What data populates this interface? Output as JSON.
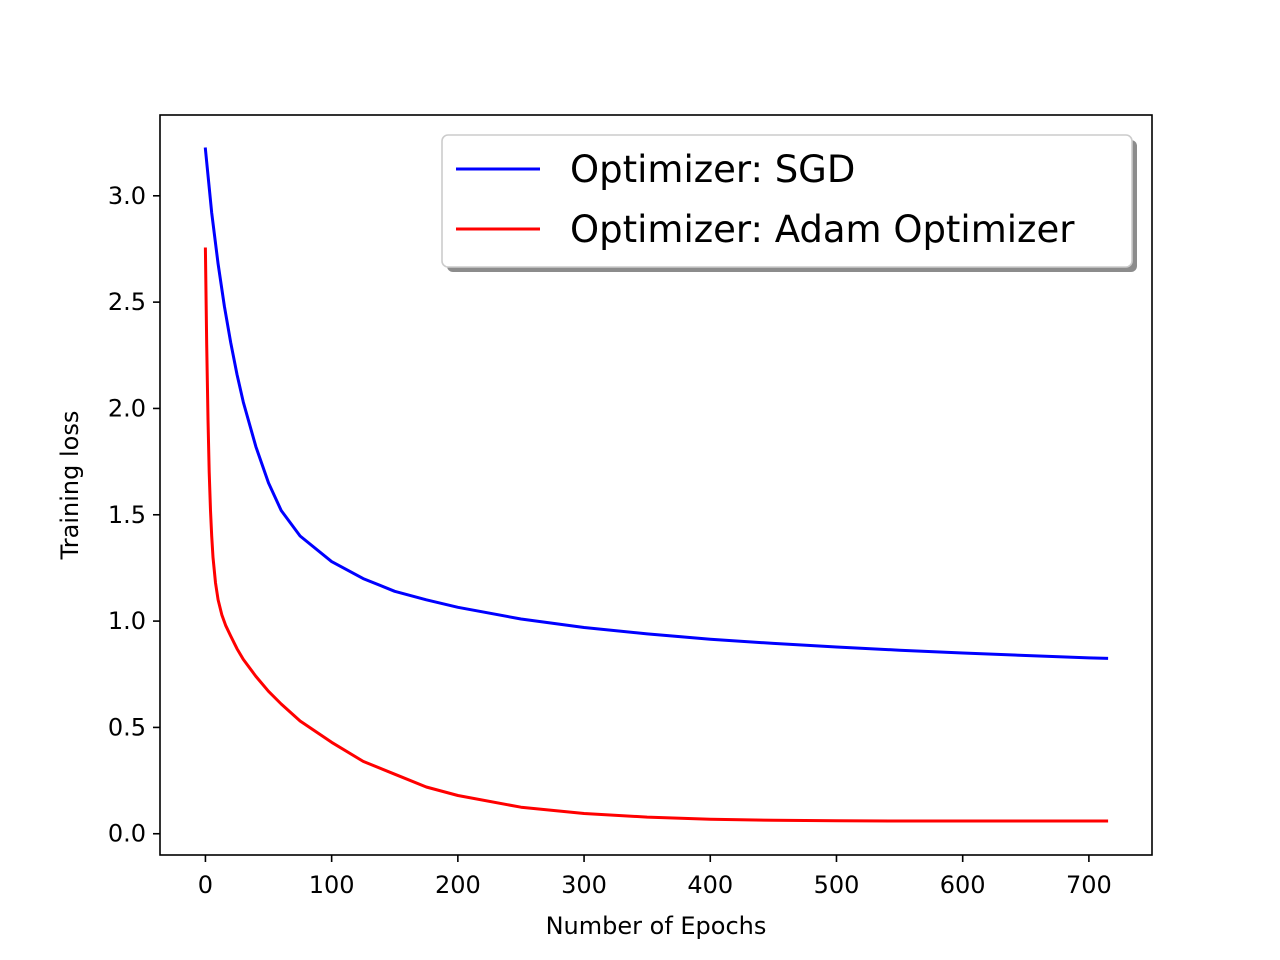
{
  "chart_data": {
    "type": "line",
    "title": "",
    "xlabel": "Number of Epochs",
    "ylabel": "Training loss",
    "xlim": [
      -36,
      750
    ],
    "ylim": [
      -0.1,
      3.38
    ],
    "grid": false,
    "legend_position": "top-right",
    "x_ticks": [
      {
        "value": 0,
        "label": "0"
      },
      {
        "value": 100,
        "label": "100"
      },
      {
        "value": 200,
        "label": "200"
      },
      {
        "value": 300,
        "label": "300"
      },
      {
        "value": 400,
        "label": "400"
      },
      {
        "value": 500,
        "label": "500"
      },
      {
        "value": 600,
        "label": "600"
      },
      {
        "value": 700,
        "label": "700"
      }
    ],
    "y_ticks": [
      {
        "value": 0.0,
        "label": "0.0"
      },
      {
        "value": 0.5,
        "label": "0.5"
      },
      {
        "value": 1.0,
        "label": "1.0"
      },
      {
        "value": 1.5,
        "label": "1.5"
      },
      {
        "value": 2.0,
        "label": "2.0"
      },
      {
        "value": 2.5,
        "label": "2.5"
      },
      {
        "value": 3.0,
        "label": "3.0"
      }
    ],
    "series": [
      {
        "name": "Optimizer: SGD",
        "color": "#0000ff",
        "x": [
          0,
          5,
          10,
          15,
          20,
          25,
          30,
          40,
          50,
          60,
          75,
          100,
          125,
          150,
          175,
          200,
          250,
          300,
          350,
          400,
          450,
          500,
          550,
          600,
          650,
          700,
          714
        ],
        "y": [
          3.22,
          2.92,
          2.68,
          2.48,
          2.31,
          2.16,
          2.03,
          1.82,
          1.65,
          1.52,
          1.4,
          1.28,
          1.2,
          1.14,
          1.1,
          1.065,
          1.01,
          0.97,
          0.94,
          0.915,
          0.895,
          0.878,
          0.863,
          0.85,
          0.838,
          0.827,
          0.825
        ]
      },
      {
        "name": "Optimizer: Adam Optimizer",
        "color": "#ff0000",
        "x": [
          0,
          1,
          2,
          3,
          4,
          5,
          6,
          8,
          10,
          13,
          16,
          20,
          25,
          30,
          40,
          50,
          60,
          75,
          100,
          125,
          150,
          175,
          200,
          250,
          300,
          350,
          400,
          450,
          500,
          550,
          600,
          650,
          700,
          714
        ],
        "y": [
          2.75,
          2.3,
          1.95,
          1.7,
          1.52,
          1.4,
          1.3,
          1.18,
          1.1,
          1.03,
          0.98,
          0.93,
          0.87,
          0.82,
          0.74,
          0.67,
          0.61,
          0.53,
          0.43,
          0.34,
          0.28,
          0.22,
          0.18,
          0.125,
          0.095,
          0.078,
          0.068,
          0.063,
          0.061,
          0.06,
          0.06,
          0.06,
          0.06,
          0.06
        ]
      }
    ]
  }
}
